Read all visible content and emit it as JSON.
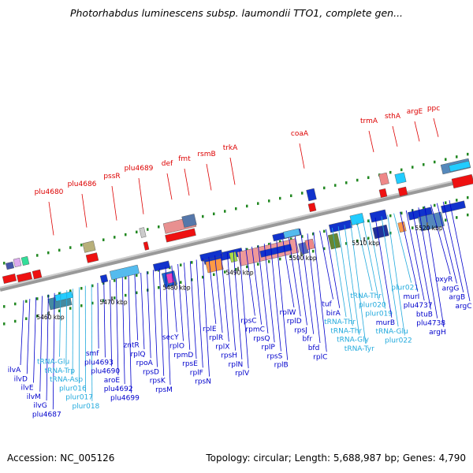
{
  "title": "Photorhabdus luminescens subsp. laumondii TTO1, complete gen...",
  "footer": {
    "accession": "Accession: NC_005126",
    "summary": "Topology: circular; Length: 5,688,987 bp; Genes: 4,790"
  },
  "colors": {
    "forward_label": "#dd0000",
    "reverse_label": "#0000cc",
    "rna_label": "#22aadd",
    "backbone": "#999999",
    "tick_dots": "#228822"
  },
  "scale_ticks": [
    {
      "label": "5460 kbp"
    },
    {
      "label": "5470 kbp"
    },
    {
      "label": "5480 kbp"
    },
    {
      "label": "5490 kbp"
    },
    {
      "label": "5500 kbp"
    },
    {
      "label": "5510 kbp"
    },
    {
      "label": "5520 kbp"
    }
  ],
  "top_labels": [
    {
      "text": "plu4680"
    },
    {
      "text": "plu4686"
    },
    {
      "text": "pssR"
    },
    {
      "text": "plu4689"
    },
    {
      "text": "def"
    },
    {
      "text": "fmt"
    },
    {
      "text": "rsmB"
    },
    {
      "text": "trkA"
    },
    {
      "text": "coaA"
    },
    {
      "text": "trmA"
    },
    {
      "text": "sthA"
    },
    {
      "text": "argE"
    },
    {
      "text": "ppc"
    }
  ],
  "bottom_labels": [
    {
      "text": "ilvA",
      "kind": "gene"
    },
    {
      "text": "ilvD",
      "kind": "gene"
    },
    {
      "text": "ilvE",
      "kind": "gene"
    },
    {
      "text": "ilvM",
      "kind": "gene"
    },
    {
      "text": "ilvG",
      "kind": "gene"
    },
    {
      "text": "plu4687",
      "kind": "gene"
    },
    {
      "text": "tRNA-Glu",
      "kind": "rna"
    },
    {
      "text": "tRNA-Trp",
      "kind": "rna"
    },
    {
      "text": "tRNA-Asp",
      "kind": "rna"
    },
    {
      "text": "plur016",
      "kind": "rna"
    },
    {
      "text": "plur017",
      "kind": "rna"
    },
    {
      "text": "plur018",
      "kind": "rna"
    },
    {
      "text": "smf",
      "kind": "gene"
    },
    {
      "text": "plu4693",
      "kind": "gene"
    },
    {
      "text": "plu4690",
      "kind": "gene"
    },
    {
      "text": "aroE",
      "kind": "gene"
    },
    {
      "text": "plu4692",
      "kind": "gene"
    },
    {
      "text": "plu4699",
      "kind": "gene"
    },
    {
      "text": "zntR",
      "kind": "gene"
    },
    {
      "text": "rplQ",
      "kind": "gene"
    },
    {
      "text": "rpoA",
      "kind": "gene"
    },
    {
      "text": "rpsD",
      "kind": "gene"
    },
    {
      "text": "rpsK",
      "kind": "gene"
    },
    {
      "text": "rpsM",
      "kind": "gene"
    },
    {
      "text": "secY",
      "kind": "gene"
    },
    {
      "text": "rplO",
      "kind": "gene"
    },
    {
      "text": "rpmD",
      "kind": "gene"
    },
    {
      "text": "rpsE",
      "kind": "gene"
    },
    {
      "text": "rplF",
      "kind": "gene"
    },
    {
      "text": "rpsN",
      "kind": "gene"
    },
    {
      "text": "rplE",
      "kind": "gene"
    },
    {
      "text": "rplR",
      "kind": "gene"
    },
    {
      "text": "rplX",
      "kind": "gene"
    },
    {
      "text": "rpsH",
      "kind": "gene"
    },
    {
      "text": "rplN",
      "kind": "gene"
    },
    {
      "text": "rplV",
      "kind": "gene"
    },
    {
      "text": "rpsC",
      "kind": "gene"
    },
    {
      "text": "rpmC",
      "kind": "gene"
    },
    {
      "text": "rpsQ",
      "kind": "gene"
    },
    {
      "text": "rplP",
      "kind": "gene"
    },
    {
      "text": "rpsS",
      "kind": "gene"
    },
    {
      "text": "rplB",
      "kind": "gene"
    },
    {
      "text": "rplW",
      "kind": "gene"
    },
    {
      "text": "rplD",
      "kind": "gene"
    },
    {
      "text": "rpsJ",
      "kind": "gene"
    },
    {
      "text": "bfr",
      "kind": "gene"
    },
    {
      "text": "bfd",
      "kind": "gene"
    },
    {
      "text": "rplC",
      "kind": "gene"
    },
    {
      "text": "tuf",
      "kind": "gene"
    },
    {
      "text": "birA",
      "kind": "gene"
    },
    {
      "text": "tRNA-Thr",
      "kind": "rna"
    },
    {
      "text": "tRNA-Thr",
      "kind": "rna"
    },
    {
      "text": "tRNA-Gly",
      "kind": "rna"
    },
    {
      "text": "tRNA-Tyr",
      "kind": "rna"
    },
    {
      "text": "tRNA-Thr",
      "kind": "rna"
    },
    {
      "text": "plur020",
      "kind": "rna"
    },
    {
      "text": "plur019",
      "kind": "rna"
    },
    {
      "text": "murB",
      "kind": "gene"
    },
    {
      "text": "tRNA-Glu",
      "kind": "rna"
    },
    {
      "text": "plur022",
      "kind": "rna"
    },
    {
      "text": "plur021",
      "kind": "rna"
    },
    {
      "text": "murI",
      "kind": "gene"
    },
    {
      "text": "plu4737",
      "kind": "gene"
    },
    {
      "text": "btuB",
      "kind": "gene"
    },
    {
      "text": "plu4738",
      "kind": "gene"
    },
    {
      "text": "argH",
      "kind": "gene"
    },
    {
      "text": "oxyR",
      "kind": "gene"
    },
    {
      "text": "argG",
      "kind": "gene"
    },
    {
      "text": "argB",
      "kind": "gene"
    },
    {
      "text": "argC",
      "kind": "gene"
    }
  ]
}
